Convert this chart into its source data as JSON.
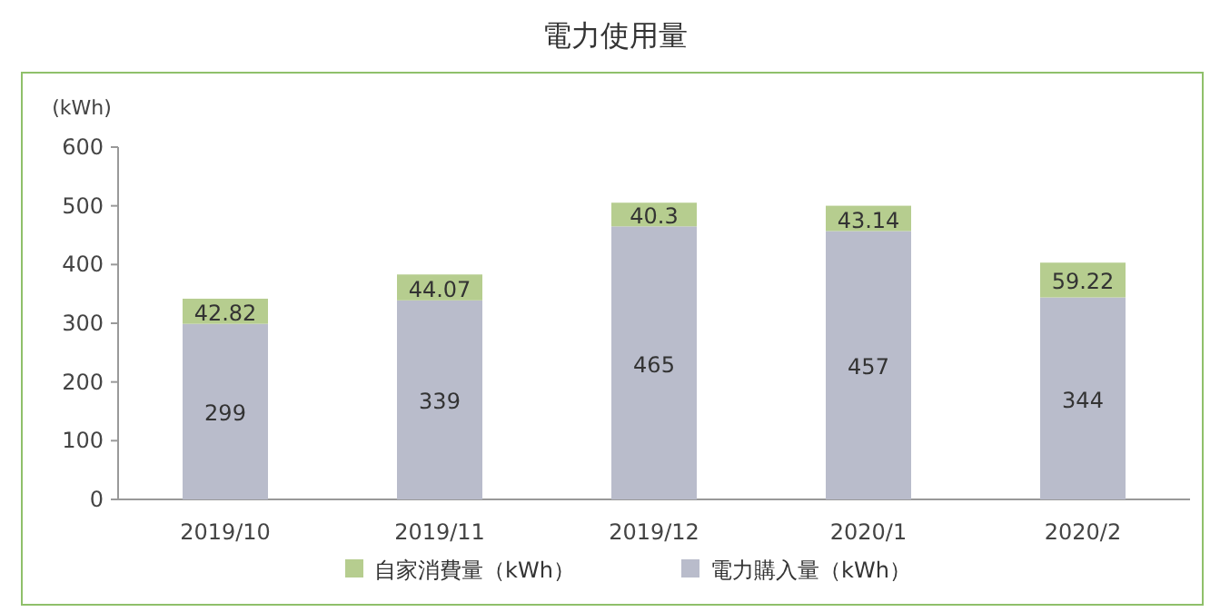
{
  "chart_data": {
    "type": "bar",
    "title": "電力使用量",
    "ylabel": "(kWh)",
    "stacked": true,
    "categories": [
      "2019/10",
      "2019/11",
      "2019/12",
      "2020/1",
      "2020/2"
    ],
    "series": [
      {
        "name": "電力購入量（kWh）",
        "color": "#b9bccb",
        "values": [
          299,
          339,
          465,
          457,
          344
        ]
      },
      {
        "name": "自家消費量（kWh）",
        "color": "#b6cd8f",
        "values": [
          42.82,
          44.07,
          40.3,
          43.14,
          59.22
        ]
      }
    ],
    "ylim": [
      0,
      600
    ],
    "yticks": [
      0,
      100,
      200,
      300,
      400,
      500,
      600
    ],
    "data_labels": true,
    "legend": "bottom"
  }
}
